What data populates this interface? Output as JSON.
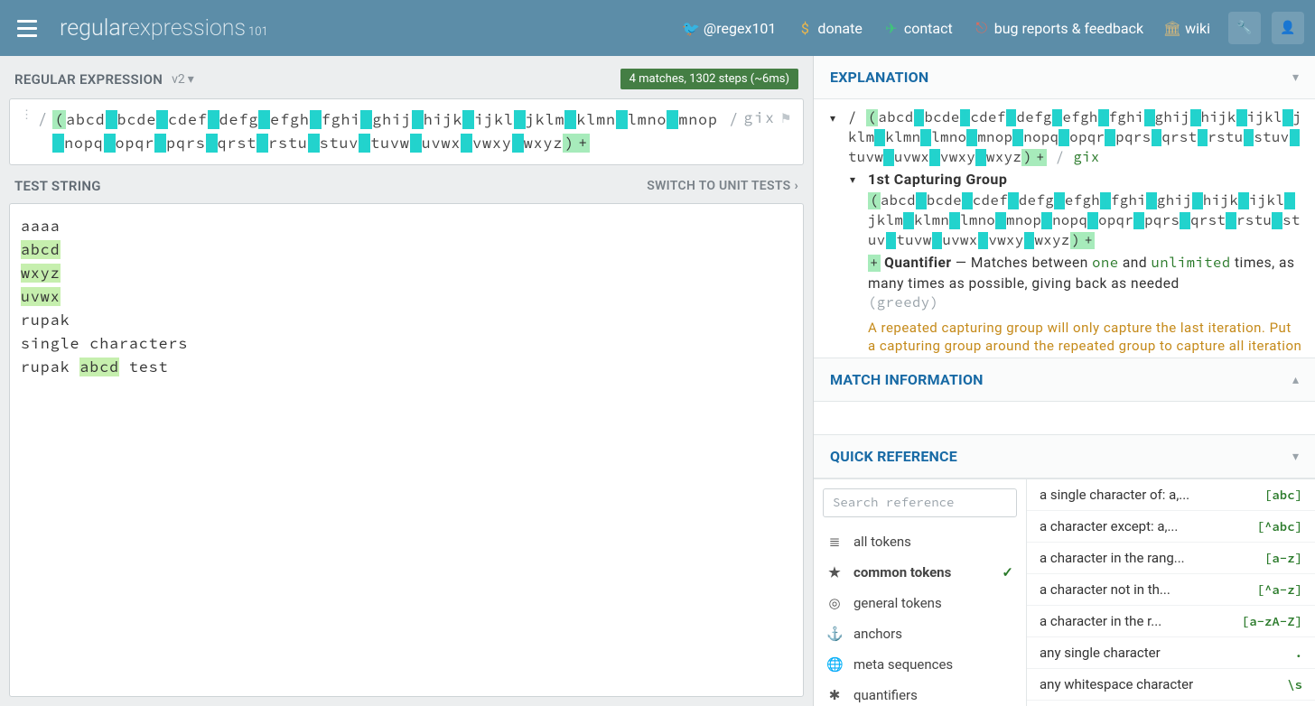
{
  "header": {
    "logo_prefix": "regular",
    "logo_suffix": "expressions",
    "logo_sub": "101",
    "nav": [
      {
        "icon": "twitter",
        "label": "@regex101",
        "color": "#2aa9e0"
      },
      {
        "icon": "dollar",
        "label": "donate",
        "color": "#f0b84a"
      },
      {
        "icon": "send",
        "label": "contact",
        "color": "#3fc47a"
      },
      {
        "icon": "github",
        "label": "bug reports & feedback",
        "color": "#e06a5a"
      },
      {
        "icon": "columns",
        "label": "wiki",
        "color": "#d6b87a"
      }
    ],
    "buttons": [
      "wrench",
      "user"
    ]
  },
  "regex": {
    "title": "REGULAR EXPRESSION",
    "version": "v2",
    "badge": "4 matches, 1302 steps (~6ms)",
    "flags": "gix",
    "parts": [
      "abcd",
      "bcde",
      "cdef",
      "defg",
      "efgh",
      "fghi",
      "ghij",
      "hijk",
      "ijkl",
      "jklm",
      "klmn",
      "lmno",
      "mnop",
      "nopq",
      "opqr",
      "pqrs",
      "qrst",
      "rstu",
      "stuv",
      "tuvw",
      "uvwx",
      "vwxy",
      "wxyz"
    ]
  },
  "test": {
    "title": "TEST STRING",
    "link": "SWITCH TO UNIT TESTS",
    "lines": [
      {
        "pre": "aaaa"
      },
      {
        "hl": "abcd"
      },
      {
        "hl": "wxyz"
      },
      {
        "hl": "uvwx"
      },
      {
        "pre": "rupak"
      },
      {
        "pre": "single characters"
      },
      {
        "pre": "rupak ",
        "hl": "abcd",
        "post": " test"
      }
    ]
  },
  "explain": {
    "title": "EXPLANATION",
    "flags_suffix": "gix",
    "capture_title": "1st Capturing Group",
    "quantifier_label": "Quantifier",
    "quantifier_text1": " — Matches between ",
    "quantifier_kw1": "one",
    "quantifier_text2": " and ",
    "quantifier_kw2": "unlimited",
    "quantifier_text3": " times, as many times as possible, giving back as needed ",
    "greedy": "(greedy)",
    "warning": "A repeated capturing group will only capture the last iteration. Put a capturing group around the repeated group to capture all iterations or use a non-capturing group instead if you're not interested in the data"
  },
  "match": {
    "title": "MATCH INFORMATION"
  },
  "quickref": {
    "title": "QUICK REFERENCE",
    "search_placeholder": "Search reference",
    "categories": [
      {
        "icon": "stack",
        "label": "all tokens"
      },
      {
        "icon": "star",
        "label": "common tokens",
        "active": true
      },
      {
        "icon": "target",
        "label": "general tokens"
      },
      {
        "icon": "anchor",
        "label": "anchors"
      },
      {
        "icon": "globe",
        "label": "meta sequences"
      },
      {
        "icon": "snow",
        "label": "quantifiers"
      }
    ],
    "tokens": [
      {
        "desc": "a single character of: a,...",
        "sym": "[abc]"
      },
      {
        "desc": "a character except: a,...",
        "sym": "[^abc]"
      },
      {
        "desc": "a character in the rang...",
        "sym": "[a-z]"
      },
      {
        "desc": "a character not in th...",
        "sym": "[^a-z]"
      },
      {
        "desc": "a character in the r...",
        "sym": "[a-zA-Z]"
      },
      {
        "desc": "any single character",
        "sym": "."
      },
      {
        "desc": "any whitespace character",
        "sym": "\\s"
      }
    ]
  },
  "colors": {
    "header_bg": "#5c8da8",
    "badge_bg": "#447e44",
    "section_title": "#186aa5"
  }
}
